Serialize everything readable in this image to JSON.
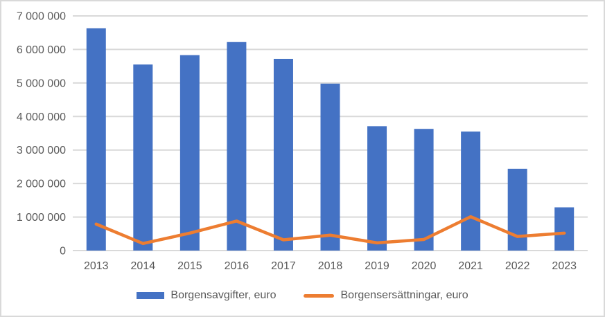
{
  "chart_data": {
    "type": "bar",
    "subtype": "bar-with-line-overlay",
    "title": "",
    "xlabel": "",
    "ylabel": "",
    "categories": [
      "2013",
      "2014",
      "2015",
      "2016",
      "2017",
      "2018",
      "2019",
      "2020",
      "2021",
      "2022",
      "2023"
    ],
    "series": [
      {
        "name": "Borgensavgifter, euro",
        "type": "bar",
        "color": "#4472C4",
        "values": [
          6630000,
          5550000,
          5830000,
          6220000,
          5720000,
          4980000,
          3710000,
          3630000,
          3550000,
          2440000,
          1290000
        ]
      },
      {
        "name": "Borgensersättningar, euro",
        "type": "line",
        "color": "#ED7D31",
        "values": [
          790000,
          210000,
          520000,
          880000,
          320000,
          460000,
          230000,
          330000,
          1010000,
          420000,
          520000
        ]
      }
    ],
    "ylim": [
      0,
      7000000
    ],
    "ytick_interval": 1000000,
    "ytick_labels": [
      "0",
      "1 000 000",
      "2 000 000",
      "3 000 000",
      "4 000 000",
      "5 000 000",
      "6 000 000",
      "7 000 000"
    ],
    "grid": true,
    "legend_position": "bottom",
    "colors": {
      "axis_text": "#595959",
      "gridline": "#D9D9D9",
      "frame_border": "#D9D9D9",
      "background": "#FFFFFF"
    }
  }
}
